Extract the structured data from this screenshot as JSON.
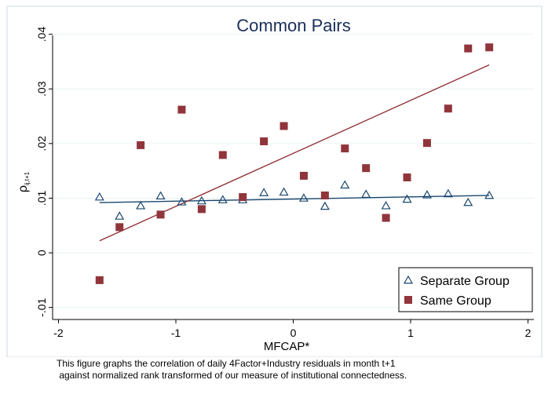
{
  "chart_data": {
    "type": "scatter",
    "title": "Common Pairs",
    "xlabel": "MFCAP*",
    "ylabel_main": "ρ",
    "ylabel_sub": "ij,t+1",
    "xlim": [
      -2.05,
      2.05
    ],
    "ylim": [
      -0.0122,
      0.0398
    ],
    "xticks": [
      -2,
      -1,
      0,
      1,
      2
    ],
    "xtick_labels": [
      "-2",
      "-1",
      "0",
      "1",
      "2"
    ],
    "yticks": [
      -0.01,
      0,
      0.01,
      0.02,
      0.03,
      0.04
    ],
    "ytick_labels": [
      "-.01",
      "0",
      ".01",
      ".02",
      ".03",
      ".04"
    ],
    "grid": "horizontal",
    "legend_position": "bottom-right",
    "series": [
      {
        "name": "Separate Group",
        "marker": "triangle",
        "color": "#1a476f",
        "x": [
          -1.65,
          -1.48,
          -1.3,
          -1.13,
          -0.95,
          -0.78,
          -0.6,
          -0.43,
          -0.25,
          -0.08,
          0.09,
          0.27,
          0.44,
          0.62,
          0.79,
          0.97,
          1.14,
          1.32,
          1.49,
          1.67
        ],
        "y": [
          0.0102,
          0.0067,
          0.0086,
          0.0104,
          0.0093,
          0.0095,
          0.0097,
          0.0097,
          0.011,
          0.0111,
          0.01,
          0.0085,
          0.0124,
          0.0107,
          0.0086,
          0.0098,
          0.0106,
          0.0108,
          0.0092,
          0.0105
        ],
        "fit": {
          "x": [
            -1.65,
            1.67
          ],
          "y": [
            0.0092,
            0.0105
          ]
        }
      },
      {
        "name": "Same Group",
        "marker": "square",
        "color": "#90353b",
        "x": [
          -1.65,
          -1.48,
          -1.3,
          -1.13,
          -0.95,
          -0.78,
          -0.6,
          -0.43,
          -0.25,
          -0.08,
          0.09,
          0.27,
          0.44,
          0.62,
          0.79,
          0.97,
          1.14,
          1.32,
          1.49,
          1.67
        ],
        "y": [
          -0.005,
          0.0047,
          0.0197,
          0.007,
          0.0262,
          0.008,
          0.0179,
          0.0102,
          0.0204,
          0.0232,
          0.0141,
          0.0105,
          0.0191,
          0.0155,
          0.0064,
          0.0138,
          0.0201,
          0.0264,
          0.0374,
          0.0376
        ],
        "fit": {
          "x": [
            -1.65,
            1.67
          ],
          "y": [
            0.0022,
            0.0344
          ]
        }
      }
    ]
  },
  "caption_lines": [
    "This figure graphs the correlation of daily 4Factor+Industry residuals in month t+1",
    " against normalized rank transformed of our measure of institutional connectedness."
  ]
}
